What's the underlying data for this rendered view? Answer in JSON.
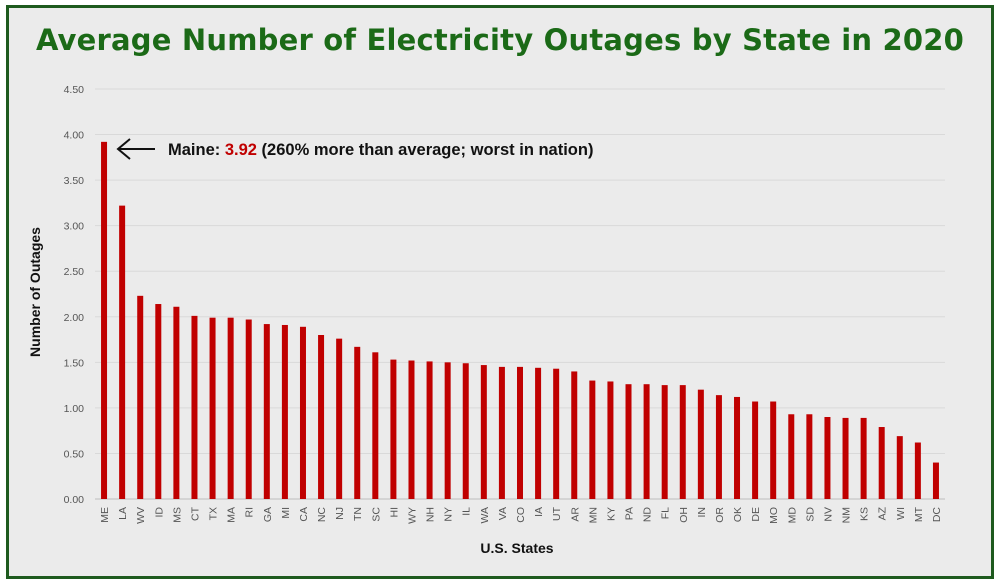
{
  "chart_data": {
    "type": "bar",
    "title": "Average Number of Electricity Outages by State in 2020",
    "xlabel": "U.S. States",
    "ylabel": "Number of Outages",
    "ylim": [
      0,
      4.5
    ],
    "yticks": [
      "0.00",
      "0.50",
      "1.00",
      "1.50",
      "2.00",
      "2.50",
      "3.00",
      "3.50",
      "4.00",
      "4.50"
    ],
    "grid": true,
    "bar_color": "#c00000",
    "categories": [
      "ME",
      "LA",
      "WV",
      "ID",
      "MS",
      "CT",
      "TX",
      "MA",
      "RI",
      "GA",
      "MI",
      "CA",
      "NC",
      "NJ",
      "TN",
      "SC",
      "HI",
      "WY",
      "NH",
      "NY",
      "IL",
      "WA",
      "VA",
      "CO",
      "IA",
      "UT",
      "AR",
      "MN",
      "KY",
      "PA",
      "ND",
      "FL",
      "OH",
      "IN",
      "OR",
      "OK",
      "DE",
      "MO",
      "MD",
      "SD",
      "NV",
      "NM",
      "KS",
      "AZ",
      "WI",
      "MT",
      "DC"
    ],
    "values": [
      3.92,
      3.22,
      2.23,
      2.14,
      2.11,
      2.01,
      1.99,
      1.99,
      1.97,
      1.92,
      1.91,
      1.89,
      1.8,
      1.76,
      1.67,
      1.61,
      1.53,
      1.52,
      1.51,
      1.5,
      1.49,
      1.47,
      1.45,
      1.45,
      1.44,
      1.43,
      1.4,
      1.3,
      1.29,
      1.26,
      1.26,
      1.25,
      1.25,
      1.2,
      1.14,
      1.12,
      1.07,
      1.07,
      0.93,
      0.93,
      0.9,
      0.89,
      0.89,
      0.79,
      0.69,
      0.62,
      0.4
    ],
    "annotation": {
      "prefix": "Maine: ",
      "value": "3.92",
      "suffix": " (260% more than average; worst in nation)",
      "arrow": "left",
      "highlight_color": "#c00000"
    }
  }
}
